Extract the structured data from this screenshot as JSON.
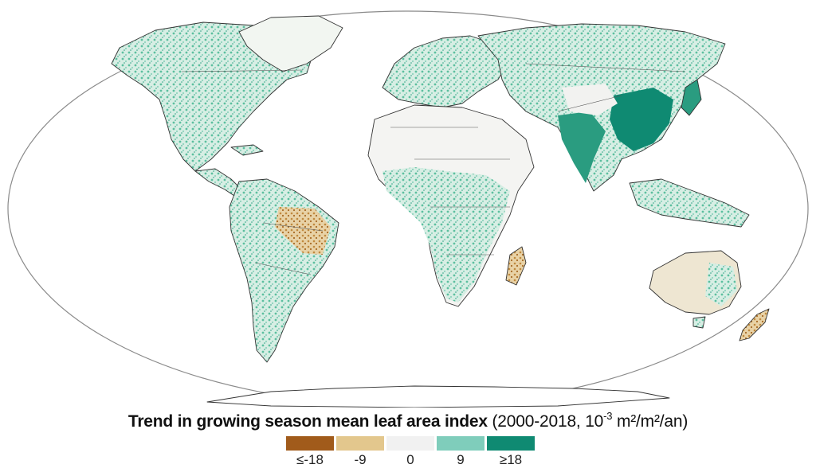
{
  "caption": {
    "title_bold": "Trend in growing season mean leaf area index",
    "details_pre": "(2000-2018, 10",
    "details_sup": "-3",
    "details_post": " m²/m²/an)"
  },
  "legend": {
    "items": [
      {
        "label": "≤-18",
        "color": "#a15b1b"
      },
      {
        "label": "-9",
        "color": "#e3c78d"
      },
      {
        "label": "0",
        "color": "#f1f1f1"
      },
      {
        "label": "9",
        "color": "#7fcdbb"
      },
      {
        "label": "≥18",
        "color": "#0f8a72"
      }
    ]
  },
  "map_colors": {
    "ocean": "#ffffff",
    "land": "#f2f6f1",
    "outline": "#222222",
    "border": "#555555"
  }
}
